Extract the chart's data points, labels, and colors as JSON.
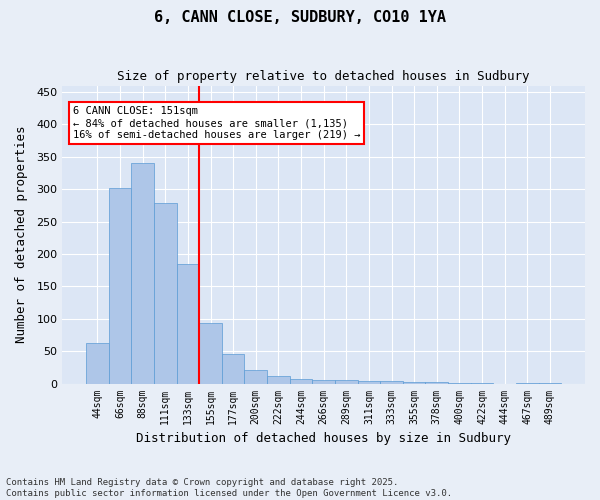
{
  "title": "6, CANN CLOSE, SUDBURY, CO10 1YA",
  "subtitle": "Size of property relative to detached houses in Sudbury",
  "xlabel": "Distribution of detached houses by size in Sudbury",
  "ylabel": "Number of detached properties",
  "bar_values": [
    63,
    302,
    340,
    278,
    185,
    93,
    46,
    21,
    11,
    7,
    5,
    5,
    4,
    4,
    3,
    2,
    1,
    1,
    0,
    1,
    1
  ],
  "bar_labels": [
    "44sqm",
    "66sqm",
    "88sqm",
    "111sqm",
    "133sqm",
    "155sqm",
    "177sqm",
    "200sqm",
    "222sqm",
    "244sqm",
    "266sqm",
    "289sqm",
    "311sqm",
    "333sqm",
    "355sqm",
    "378sqm",
    "400sqm",
    "422sqm",
    "444sqm",
    "467sqm",
    "489sqm"
  ],
  "bar_color": "#aec6e8",
  "bar_edge_color": "#5b9bd5",
  "vline_color": "red",
  "annotation_title": "6 CANN CLOSE: 151sqm",
  "annotation_line1": "← 84% of detached houses are smaller (1,135)",
  "annotation_line2": "16% of semi-detached houses are larger (219) →",
  "annotation_box_color": "white",
  "annotation_box_edge_color": "red",
  "ylim": [
    0,
    460
  ],
  "yticks": [
    0,
    50,
    100,
    150,
    200,
    250,
    300,
    350,
    400,
    450
  ],
  "footer_line1": "Contains HM Land Registry data © Crown copyright and database right 2025.",
  "footer_line2": "Contains public sector information licensed under the Open Government Licence v3.0.",
  "bg_color": "#e8eef7",
  "plot_bg_color": "#dce6f5",
  "grid_color": "white"
}
